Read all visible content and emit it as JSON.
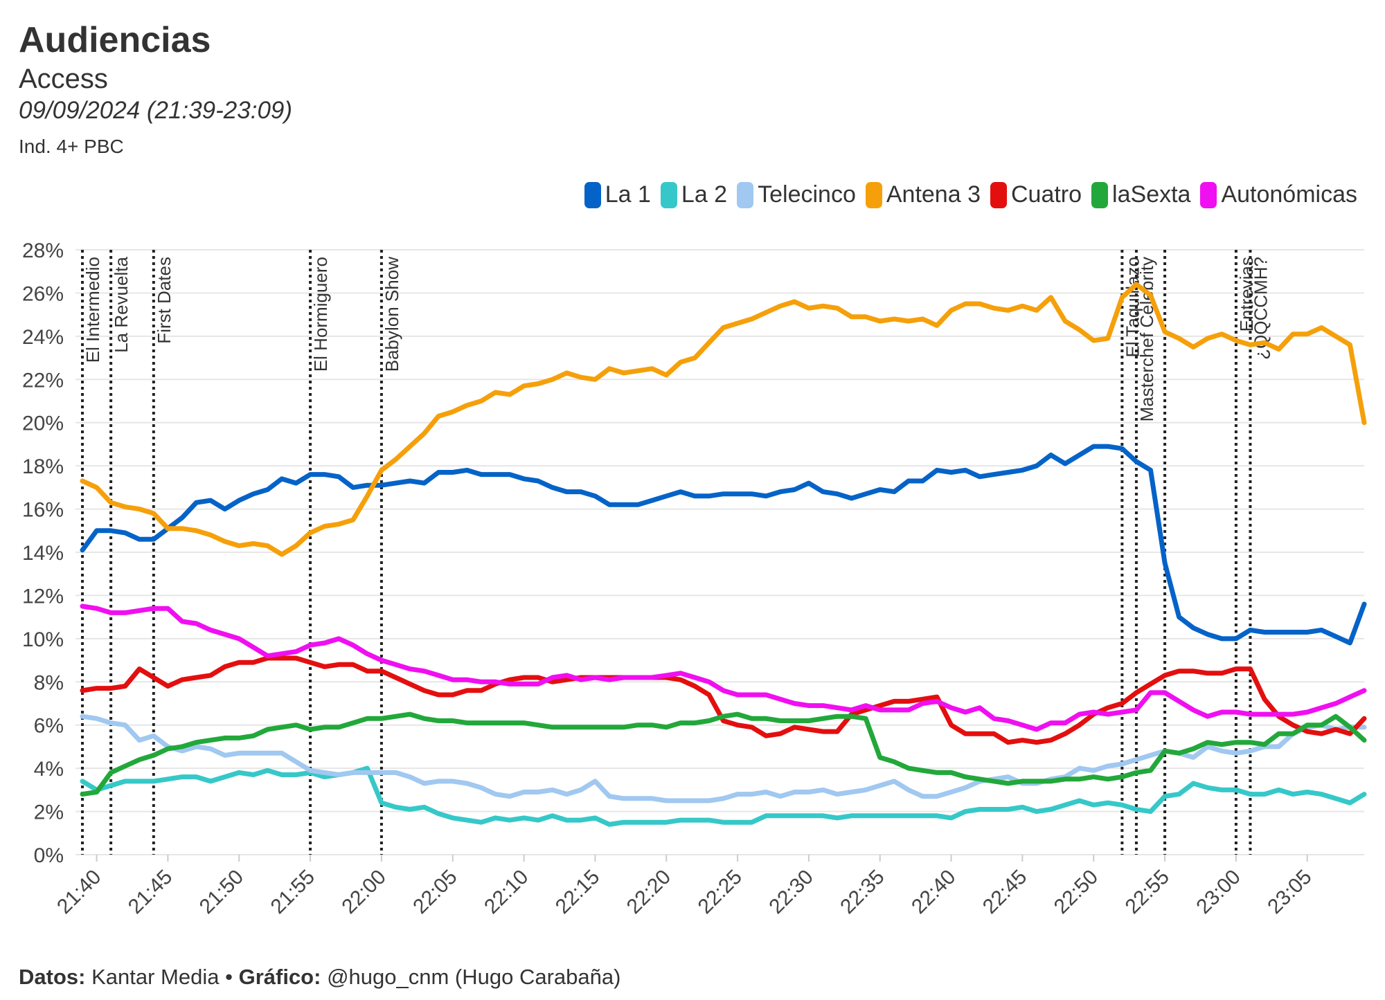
{
  "header": {
    "title": "Audiencias",
    "subtitle": "Access",
    "date": "09/09/2024 (21:39-23:09)",
    "audience": "Ind. 4+ PBC"
  },
  "footer": {
    "data_label": "Datos:",
    "data_value": "Kantar Media",
    "separator": "•",
    "chart_label": "Gráfico:",
    "chart_value": "@hugo_cnm (Hugo Carabaña)"
  },
  "chart_data": {
    "type": "line",
    "title": "Audiencias",
    "subtitle": "Access",
    "xlabel": "",
    "ylabel": "",
    "x_start": "21:39",
    "x_end": "23:09",
    "x_step_minutes": 1,
    "xlim_minutes": [
      0,
      90
    ],
    "ylim": [
      0,
      28
    ],
    "y_ticks": [
      0,
      2,
      4,
      6,
      8,
      10,
      12,
      14,
      16,
      18,
      20,
      22,
      24,
      26,
      28
    ],
    "y_tick_labels": [
      "0%",
      "2%",
      "4%",
      "6%",
      "8%",
      "10%",
      "12%",
      "14%",
      "16%",
      "18%",
      "20%",
      "22%",
      "24%",
      "26%",
      "28%"
    ],
    "x_ticks": [
      "21:40",
      "21:45",
      "21:50",
      "21:55",
      "22:00",
      "22:05",
      "22:10",
      "22:15",
      "22:20",
      "22:25",
      "22:30",
      "22:35",
      "22:40",
      "22:45",
      "22:50",
      "22:55",
      "23:00",
      "23:05"
    ],
    "grid": true,
    "legend_position": "top-right",
    "annotations": [
      {
        "time": "21:39",
        "label": "El Intermedio"
      },
      {
        "time": "21:41",
        "label": "La Revuelta"
      },
      {
        "time": "21:44",
        "label": "First Dates"
      },
      {
        "time": "21:55",
        "label": "El Hormiguero"
      },
      {
        "time": "22:00",
        "label": "Babylon Show"
      },
      {
        "time": "22:52",
        "label": "El Taquillazo"
      },
      {
        "time": "22:53",
        "label": "Masterchef Celebrity"
      },
      {
        "time": "22:55",
        "label": ""
      },
      {
        "time": "23:00",
        "label": "Entrevias"
      },
      {
        "time": "23:01",
        "label": "¿QQCCMH?"
      }
    ],
    "series": [
      {
        "name": "La 1",
        "color": "#0563c8",
        "values": [
          14.1,
          15.0,
          15.0,
          14.9,
          14.6,
          14.6,
          15.1,
          15.6,
          16.3,
          16.4,
          16.0,
          16.4,
          16.7,
          16.9,
          17.4,
          17.2,
          17.6,
          17.6,
          17.5,
          17.0,
          17.1,
          17.1,
          17.2,
          17.3,
          17.2,
          17.7,
          17.7,
          17.8,
          17.6,
          17.6,
          17.6,
          17.4,
          17.3,
          17.0,
          16.8,
          16.8,
          16.6,
          16.2,
          16.2,
          16.2,
          16.4,
          16.6,
          16.8,
          16.6,
          16.6,
          16.7,
          16.7,
          16.7,
          16.6,
          16.8,
          16.9,
          17.2,
          16.8,
          16.7,
          16.5,
          16.7,
          16.9,
          16.8,
          17.3,
          17.3,
          17.8,
          17.7,
          17.8,
          17.5,
          17.6,
          17.7,
          17.8,
          18.0,
          18.5,
          18.1,
          18.5,
          18.9,
          18.9,
          18.8,
          18.2,
          17.8,
          13.5,
          11.0,
          10.5,
          10.2,
          10.0,
          10.0,
          10.4,
          10.3,
          10.3,
          10.3,
          10.3,
          10.4,
          10.1,
          9.8,
          11.6
        ]
      },
      {
        "name": "La 2",
        "color": "#36c8c8",
        "values": [
          3.4,
          3.0,
          3.2,
          3.4,
          3.4,
          3.4,
          3.5,
          3.6,
          3.6,
          3.4,
          3.6,
          3.8,
          3.7,
          3.9,
          3.7,
          3.7,
          3.8,
          3.6,
          3.7,
          3.8,
          4.0,
          2.4,
          2.2,
          2.1,
          2.2,
          1.9,
          1.7,
          1.6,
          1.5,
          1.7,
          1.6,
          1.7,
          1.6,
          1.8,
          1.6,
          1.6,
          1.7,
          1.4,
          1.5,
          1.5,
          1.5,
          1.5,
          1.6,
          1.6,
          1.6,
          1.5,
          1.5,
          1.5,
          1.8,
          1.8,
          1.8,
          1.8,
          1.8,
          1.7,
          1.8,
          1.8,
          1.8,
          1.8,
          1.8,
          1.8,
          1.8,
          1.7,
          2.0,
          2.1,
          2.1,
          2.1,
          2.2,
          2.0,
          2.1,
          2.3,
          2.5,
          2.3,
          2.4,
          2.3,
          2.1,
          2.0,
          2.7,
          2.8,
          3.3,
          3.1,
          3.0,
          3.0,
          2.8,
          2.8,
          3.0,
          2.8,
          2.9,
          2.8,
          2.6,
          2.4,
          2.8
        ]
      },
      {
        "name": "Telecinco",
        "color": "#a0c8f0",
        "values": [
          6.4,
          6.3,
          6.1,
          6.0,
          5.3,
          5.5,
          5.0,
          4.8,
          5.0,
          4.9,
          4.6,
          4.7,
          4.7,
          4.7,
          4.7,
          4.3,
          3.9,
          3.8,
          3.7,
          3.8,
          3.8,
          3.8,
          3.8,
          3.6,
          3.3,
          3.4,
          3.4,
          3.3,
          3.1,
          2.8,
          2.7,
          2.9,
          2.9,
          3.0,
          2.8,
          3.0,
          3.4,
          2.7,
          2.6,
          2.6,
          2.6,
          2.5,
          2.5,
          2.5,
          2.5,
          2.6,
          2.8,
          2.8,
          2.9,
          2.7,
          2.9,
          2.9,
          3.0,
          2.8,
          2.9,
          3.0,
          3.2,
          3.4,
          3.0,
          2.7,
          2.7,
          2.9,
          3.1,
          3.4,
          3.5,
          3.6,
          3.3,
          3.3,
          3.5,
          3.6,
          4.0,
          3.9,
          4.1,
          4.2,
          4.4,
          4.6,
          4.8,
          4.7,
          4.5,
          5.0,
          4.8,
          4.7,
          4.8,
          5.0,
          5.0,
          5.6,
          5.9,
          6.0,
          5.8,
          5.9,
          5.9
        ]
      },
      {
        "name": "Antena 3",
        "color": "#f5a00a",
        "values": [
          17.3,
          17.0,
          16.3,
          16.1,
          16.0,
          15.8,
          15.1,
          15.1,
          15.0,
          14.8,
          14.5,
          14.3,
          14.4,
          14.3,
          13.9,
          14.3,
          14.9,
          15.2,
          15.3,
          15.5,
          16.6,
          17.8,
          18.3,
          18.9,
          19.5,
          20.3,
          20.5,
          20.8,
          21.0,
          21.4,
          21.3,
          21.7,
          21.8,
          22.0,
          22.3,
          22.1,
          22.0,
          22.5,
          22.3,
          22.4,
          22.5,
          22.2,
          22.8,
          23.0,
          23.7,
          24.4,
          24.6,
          24.8,
          25.1,
          25.4,
          25.6,
          25.3,
          25.4,
          25.3,
          24.9,
          24.9,
          24.7,
          24.8,
          24.7,
          24.8,
          24.5,
          25.2,
          25.5,
          25.5,
          25.3,
          25.2,
          25.4,
          25.2,
          25.8,
          24.7,
          24.3,
          23.8,
          23.9,
          25.8,
          26.4,
          25.9,
          24.2,
          23.9,
          23.5,
          23.9,
          24.1,
          23.8,
          23.6,
          23.7,
          23.4,
          24.1,
          24.1,
          24.4,
          24.0,
          23.6,
          20.0
        ]
      },
      {
        "name": "Cuatro",
        "color": "#e30f0f",
        "values": [
          7.6,
          7.7,
          7.7,
          7.8,
          8.6,
          8.2,
          7.8,
          8.1,
          8.2,
          8.3,
          8.7,
          8.9,
          8.9,
          9.1,
          9.1,
          9.1,
          8.9,
          8.7,
          8.8,
          8.8,
          8.5,
          8.5,
          8.2,
          7.9,
          7.6,
          7.4,
          7.4,
          7.6,
          7.6,
          7.9,
          8.1,
          8.2,
          8.2,
          8.0,
          8.1,
          8.2,
          8.2,
          8.2,
          8.2,
          8.2,
          8.2,
          8.2,
          8.1,
          7.8,
          7.4,
          6.2,
          6.0,
          5.9,
          5.5,
          5.6,
          5.9,
          5.8,
          5.7,
          5.7,
          6.5,
          6.7,
          6.9,
          7.1,
          7.1,
          7.2,
          7.3,
          6.0,
          5.6,
          5.6,
          5.6,
          5.2,
          5.3,
          5.2,
          5.3,
          5.6,
          6.0,
          6.5,
          6.8,
          7.0,
          7.5,
          7.9,
          8.3,
          8.5,
          8.5,
          8.4,
          8.4,
          8.6,
          8.6,
          7.2,
          6.4,
          6.0,
          5.7,
          5.6,
          5.8,
          5.6,
          6.3
        ]
      },
      {
        "name": "laSexta",
        "color": "#22a83a",
        "values": [
          2.8,
          2.9,
          3.8,
          4.1,
          4.4,
          4.6,
          4.9,
          5.0,
          5.2,
          5.3,
          5.4,
          5.4,
          5.5,
          5.8,
          5.9,
          6.0,
          5.8,
          5.9,
          5.9,
          6.1,
          6.3,
          6.3,
          6.4,
          6.5,
          6.3,
          6.2,
          6.2,
          6.1,
          6.1,
          6.1,
          6.1,
          6.1,
          6.0,
          5.9,
          5.9,
          5.9,
          5.9,
          5.9,
          5.9,
          6.0,
          6.0,
          5.9,
          6.1,
          6.1,
          6.2,
          6.4,
          6.5,
          6.3,
          6.3,
          6.2,
          6.2,
          6.2,
          6.3,
          6.4,
          6.4,
          6.3,
          4.5,
          4.3,
          4.0,
          3.9,
          3.8,
          3.8,
          3.6,
          3.5,
          3.4,
          3.3,
          3.4,
          3.4,
          3.4,
          3.5,
          3.5,
          3.6,
          3.5,
          3.6,
          3.8,
          3.9,
          4.8,
          4.7,
          4.9,
          5.2,
          5.1,
          5.2,
          5.2,
          5.1,
          5.6,
          5.6,
          6.0,
          6.0,
          6.4,
          5.9,
          5.3
        ]
      },
      {
        "name": "Autonómicas",
        "color": "#f00ff0",
        "values": [
          11.5,
          11.4,
          11.2,
          11.2,
          11.3,
          11.4,
          11.4,
          10.8,
          10.7,
          10.4,
          10.2,
          10.0,
          9.6,
          9.2,
          9.3,
          9.4,
          9.7,
          9.8,
          10.0,
          9.7,
          9.3,
          9.0,
          8.8,
          8.6,
          8.5,
          8.3,
          8.1,
          8.1,
          8.0,
          8.0,
          7.9,
          7.9,
          7.9,
          8.2,
          8.3,
          8.1,
          8.2,
          8.1,
          8.2,
          8.2,
          8.2,
          8.3,
          8.4,
          8.2,
          8.0,
          7.6,
          7.4,
          7.4,
          7.4,
          7.2,
          7.0,
          6.9,
          6.9,
          6.8,
          6.7,
          6.9,
          6.7,
          6.7,
          6.7,
          7.0,
          7.1,
          6.8,
          6.6,
          6.8,
          6.3,
          6.2,
          6.0,
          5.8,
          6.1,
          6.1,
          6.5,
          6.6,
          6.5,
          6.6,
          6.7,
          7.5,
          7.5,
          7.1,
          6.7,
          6.4,
          6.6,
          6.6,
          6.5,
          6.5,
          6.5,
          6.5,
          6.6,
          6.8,
          7.0,
          7.3,
          7.6
        ]
      }
    ]
  }
}
